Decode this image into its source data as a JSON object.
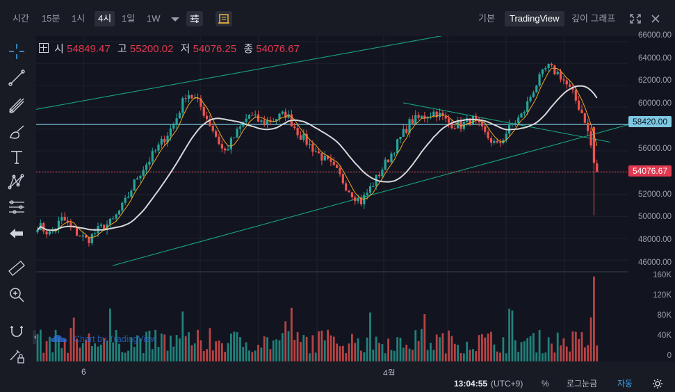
{
  "toolbar": {
    "timeframes": [
      "시간",
      "15분",
      "1시",
      "4시",
      "1일",
      "1W"
    ],
    "active_timeframe": "4시",
    "views": [
      "기본",
      "TradingView",
      "깊이 그래프"
    ],
    "active_view": "TradingView"
  },
  "ohlc": {
    "open_label": "시",
    "open": "54849.47",
    "high_label": "고",
    "high": "55200.02",
    "low_label": "저",
    "low": "54076.25",
    "close_label": "종",
    "close": "54076.67"
  },
  "watermark": "Chart by TradingView",
  "price_axis": {
    "ticks": [
      "66000.00",
      "64000.00",
      "62000.00",
      "60000.00",
      "58000.00",
      "56000.00",
      "54000.00",
      "52000.00",
      "50000.00",
      "48000.00",
      "46000.00"
    ],
    "horizontal_line_label": "58420.00",
    "last_price_label": "54076.67"
  },
  "volume_axis": {
    "ticks": [
      "160K",
      "120K",
      "80K",
      "40K",
      "0"
    ]
  },
  "time_axis": {
    "labels": [
      "6",
      "4월"
    ]
  },
  "status_bar": {
    "time": "13:04:55",
    "timezone": "(UTC+9)",
    "percent": "%",
    "log": "로그눈금",
    "auto": "자동"
  },
  "colors": {
    "up": "#26a69a",
    "down": "#ef5350",
    "ma_white": "#d8d8d8",
    "ma_orange": "#f5a623",
    "hline": "#7ec8e3",
    "last_price": "#e0394f",
    "trendline": "#1aa37a"
  },
  "chart_data": {
    "type": "candlestick",
    "price_ylim": [
      45000,
      66500
    ],
    "volume_ylim": [
      0,
      165000
    ],
    "close_path": [
      49200,
      48400,
      49800,
      48600,
      47800,
      48900,
      49500,
      51200,
      53600,
      55200,
      56800,
      58500,
      61400,
      60300,
      58200,
      55800,
      57600,
      59300,
      58600,
      58900,
      59400,
      57600,
      56400,
      55300,
      54200,
      52500,
      51300,
      53000,
      54900,
      56800,
      58700,
      59100,
      59600,
      58600,
      58300,
      58900,
      57500,
      56400,
      58200,
      59300,
      61900,
      63700,
      63000,
      61300,
      59000,
      54076
    ],
    "last_close": 54076.67,
    "horizontal_level": 58420,
    "volume_peak": 160000
  }
}
